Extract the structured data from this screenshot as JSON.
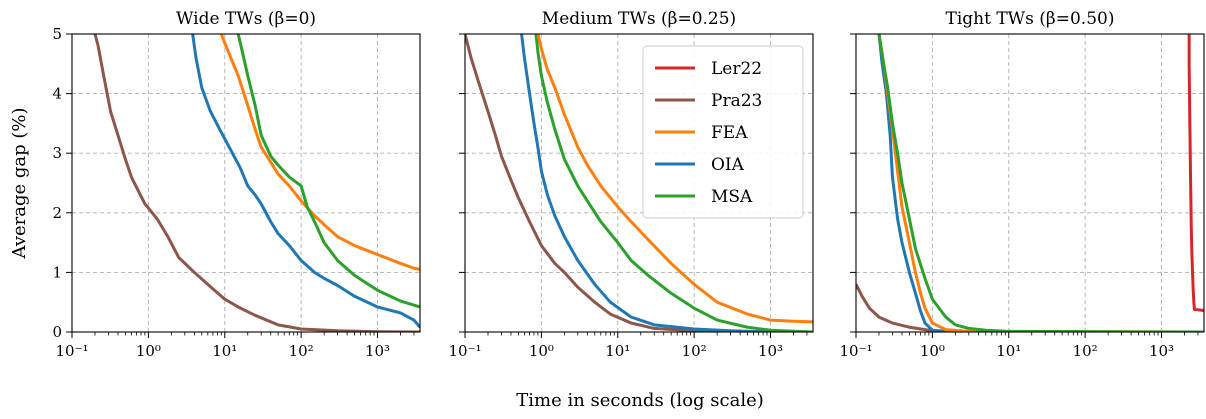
{
  "figure": {
    "shared_xlabel": "Time in seconds (log scale)",
    "shared_ylabel": "Average gap (%)"
  },
  "chart_data": [
    {
      "type": "line",
      "title": "Wide TWs (β=0)",
      "xscale": "log",
      "xlim": [
        0.1,
        3600
      ],
      "ylim": [
        0,
        5
      ],
      "x_ticks": [
        0.1,
        1,
        10,
        100,
        1000
      ],
      "x_tick_labels": [
        "10⁻¹",
        "10⁰",
        "10¹",
        "10²",
        "10³"
      ],
      "y_ticks": [
        0,
        1,
        2,
        3,
        4,
        5
      ],
      "grid": true,
      "series": [
        {
          "name": "Pra23",
          "color": "#8c564b",
          "x": [
            0.2,
            0.22,
            0.26,
            0.32,
            0.4,
            0.5,
            0.6,
            0.75,
            0.9,
            1.0,
            1.3,
            1.8,
            2.5,
            4,
            6,
            10,
            15,
            25,
            50,
            100,
            300,
            1000,
            3600
          ],
          "y": [
            5.0,
            4.8,
            4.3,
            3.7,
            3.3,
            2.9,
            2.6,
            2.35,
            2.15,
            2.08,
            1.9,
            1.6,
            1.25,
            1.0,
            0.8,
            0.55,
            0.42,
            0.28,
            0.12,
            0.05,
            0.02,
            0.005,
            0.0
          ]
        },
        {
          "name": "OIA",
          "color": "#1f77b4",
          "x": [
            3.8,
            4.2,
            5,
            6.5,
            9,
            12,
            16,
            20,
            25,
            30,
            40,
            50,
            70,
            100,
            150,
            200,
            300,
            500,
            1000,
            2000,
            3000,
            3600
          ],
          "y": [
            5.0,
            4.6,
            4.1,
            3.7,
            3.35,
            3.05,
            2.75,
            2.45,
            2.3,
            2.15,
            1.85,
            1.65,
            1.45,
            1.2,
            1.0,
            0.9,
            0.78,
            0.6,
            0.42,
            0.32,
            0.2,
            0.08
          ]
        },
        {
          "name": "FEA",
          "color": "#ff7f0e",
          "x": [
            9,
            10,
            12,
            15,
            20,
            25,
            30,
            40,
            50,
            70,
            100,
            150,
            200,
            300,
            500,
            1000,
            2000,
            3000,
            3600
          ],
          "y": [
            5.0,
            4.85,
            4.6,
            4.3,
            3.8,
            3.4,
            3.1,
            2.85,
            2.65,
            2.45,
            2.2,
            1.95,
            1.8,
            1.6,
            1.45,
            1.3,
            1.15,
            1.07,
            1.05
          ]
        },
        {
          "name": "MSA",
          "color": "#2ca02c",
          "x": [
            15,
            17,
            20,
            25,
            30,
            40,
            50,
            70,
            100,
            120,
            150,
            200,
            300,
            500,
            1000,
            2000,
            3600
          ],
          "y": [
            5.0,
            4.7,
            4.3,
            3.8,
            3.3,
            2.95,
            2.8,
            2.6,
            2.45,
            2.1,
            1.85,
            1.5,
            1.2,
            0.95,
            0.7,
            0.52,
            0.42
          ]
        }
      ]
    },
    {
      "type": "line",
      "title": "Medium TWs (β=0.25)",
      "xscale": "log",
      "xlim": [
        0.1,
        3600
      ],
      "ylim": [
        0,
        5
      ],
      "x_ticks": [
        0.1,
        1,
        10,
        100,
        1000
      ],
      "x_tick_labels": [
        "10⁻¹",
        "10⁰",
        "10¹",
        "10²",
        "10³"
      ],
      "y_ticks": [
        0,
        1,
        2,
        3,
        4,
        5
      ],
      "grid": true,
      "series": [
        {
          "name": "Pra23",
          "color": "#8c564b",
          "x": [
            0.1,
            0.12,
            0.15,
            0.2,
            0.25,
            0.3,
            0.4,
            0.5,
            0.7,
            1.0,
            1.5,
            2,
            3,
            5,
            8,
            15,
            30,
            100,
            300,
            1000,
            3600
          ],
          "y": [
            5.0,
            4.6,
            4.2,
            3.7,
            3.3,
            2.95,
            2.55,
            2.25,
            1.85,
            1.45,
            1.15,
            1.0,
            0.75,
            0.5,
            0.3,
            0.15,
            0.06,
            0.02,
            0.01,
            0.0,
            0.0
          ]
        },
        {
          "name": "OIA",
          "color": "#1f77b4",
          "x": [
            0.55,
            0.6,
            0.7,
            0.8,
            0.9,
            1.0,
            1.2,
            1.5,
            2,
            3,
            5,
            8,
            15,
            30,
            100,
            300,
            1000,
            3600
          ],
          "y": [
            5.0,
            4.6,
            4.0,
            3.5,
            3.1,
            2.7,
            2.3,
            1.95,
            1.6,
            1.2,
            0.8,
            0.5,
            0.25,
            0.12,
            0.05,
            0.02,
            0.0,
            0.0
          ]
        },
        {
          "name": "MSA",
          "color": "#2ca02c",
          "x": [
            0.85,
            0.9,
            1.0,
            1.2,
            1.5,
            2,
            3,
            4,
            6,
            10,
            15,
            25,
            50,
            100,
            200,
            500,
            1000,
            3600
          ],
          "y": [
            5.0,
            4.7,
            4.3,
            3.85,
            3.4,
            2.9,
            2.45,
            2.2,
            1.85,
            1.5,
            1.2,
            0.95,
            0.65,
            0.4,
            0.2,
            0.08,
            0.03,
            0.0
          ]
        },
        {
          "name": "FEA",
          "color": "#ff7f0e",
          "x": [
            0.9,
            1.0,
            1.2,
            1.5,
            2,
            3,
            4,
            6,
            10,
            15,
            25,
            50,
            100,
            200,
            500,
            1000,
            2000,
            3600
          ],
          "y": [
            5.0,
            4.75,
            4.4,
            4.1,
            3.65,
            3.1,
            2.8,
            2.45,
            2.1,
            1.85,
            1.55,
            1.15,
            0.8,
            0.5,
            0.3,
            0.2,
            0.18,
            0.17
          ]
        }
      ]
    },
    {
      "type": "line",
      "title": "Tight TWs (β=0.50)",
      "xscale": "log",
      "xlim": [
        0.1,
        3600
      ],
      "ylim": [
        0,
        5
      ],
      "x_ticks": [
        0.1,
        1,
        10,
        100,
        1000
      ],
      "x_tick_labels": [
        "10⁻¹",
        "10⁰",
        "10¹",
        "10²",
        "10³"
      ],
      "y_ticks": [
        0,
        1,
        2,
        3,
        4,
        5
      ],
      "grid": true,
      "legend": {
        "placement": "upper-right",
        "panel": 2,
        "entries": [
          "Ler22",
          "Pra23",
          "FEA",
          "OIA",
          "MSA"
        ]
      },
      "series": [
        {
          "name": "Ler22",
          "color": "#d62728",
          "x": [
            2300,
            2300,
            2350,
            2400,
            2450,
            2500,
            2550,
            2600,
            2650,
            2700,
            3600
          ],
          "y": [
            5.0,
            4.5,
            3.5,
            2.6,
            1.8,
            1.3,
            1.0,
            0.7,
            0.5,
            0.38,
            0.36
          ]
        },
        {
          "name": "Pra23",
          "color": "#8c564b",
          "x": [
            0.1,
            0.12,
            0.15,
            0.2,
            0.3,
            0.5,
            0.8,
            1.0,
            2,
            10,
            3600
          ],
          "y": [
            0.8,
            0.6,
            0.4,
            0.25,
            0.15,
            0.08,
            0.04,
            0.02,
            0.01,
            0.0,
            0.0
          ]
        },
        {
          "name": "OIA",
          "color": "#1f77b4",
          "x": [
            0.2,
            0.22,
            0.25,
            0.28,
            0.3,
            0.35,
            0.4,
            0.5,
            0.6,
            0.7,
            0.8,
            1.0,
            2,
            3600
          ],
          "y": [
            5.0,
            4.5,
            4.0,
            3.3,
            2.6,
            1.9,
            1.5,
            1.0,
            0.65,
            0.35,
            0.15,
            0.03,
            0.0,
            0.0
          ]
        },
        {
          "name": "FEA",
          "color": "#ff7f0e",
          "x": [
            0.2,
            0.23,
            0.26,
            0.3,
            0.35,
            0.4,
            0.5,
            0.6,
            0.7,
            0.8,
            1.0,
            1.5,
            3,
            3600
          ],
          "y": [
            5.0,
            4.5,
            4.0,
            3.4,
            2.7,
            2.1,
            1.5,
            1.0,
            0.65,
            0.4,
            0.15,
            0.04,
            0.01,
            0.0
          ]
        },
        {
          "name": "MSA",
          "color": "#2ca02c",
          "x": [
            0.2,
            0.23,
            0.26,
            0.3,
            0.35,
            0.4,
            0.5,
            0.6,
            0.8,
            1.0,
            1.5,
            2,
            3,
            5,
            10,
            3600
          ],
          "y": [
            5.0,
            4.5,
            4.1,
            3.5,
            3.0,
            2.5,
            1.9,
            1.4,
            0.9,
            0.55,
            0.25,
            0.12,
            0.06,
            0.03,
            0.01,
            0.0
          ]
        }
      ]
    }
  ]
}
